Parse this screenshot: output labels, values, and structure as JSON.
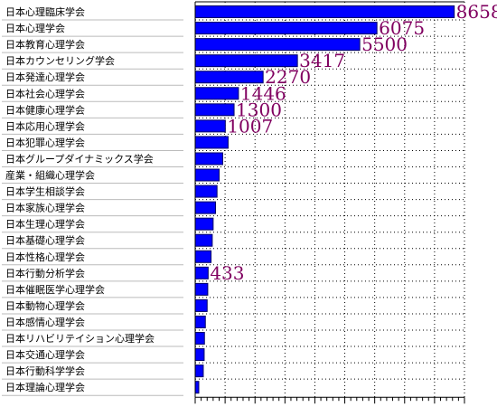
{
  "chart_data": {
    "type": "bar",
    "orientation": "horizontal",
    "title": "",
    "xlabel": "",
    "ylabel": "",
    "xlim": [
      0,
      9000
    ],
    "grid": true,
    "legend": "none",
    "categories": [
      "日本心理臨床学会",
      "日本心理学会",
      "日本教育心理学会",
      "日本カウンセリング学会",
      "日本発達心理学会",
      "日本社会心理学会",
      "日本健康心理学会",
      "日本応用心理学会",
      "日本犯罪心理学会",
      "日本グループダイナミックス学会",
      "産業・組織心理学会",
      "日本学生相談学会",
      "日本家族心理学会",
      "日本生理心理学会",
      "日本基礎心理学会",
      "日本性格心理学会",
      "日本行動分析学会",
      "日本催眠医学心理学会",
      "日本動物心理学会",
      "日本感情心理学会",
      "日本リハビリテイション心理学会",
      "日本交通心理学会",
      "日本行動科学学会",
      "日本理論心理学会"
    ],
    "values": [
      8658,
      6075,
      5500,
      3417,
      2270,
      1446,
      1300,
      1007,
      1100,
      920,
      800,
      730,
      680,
      600,
      570,
      530,
      433,
      420,
      400,
      340,
      310,
      300,
      270,
      120
    ],
    "data_labels": [
      {
        "index": 0,
        "text": "8658"
      },
      {
        "index": 1,
        "text": "6075"
      },
      {
        "index": 2,
        "text": "5500"
      },
      {
        "index": 3,
        "text": "3417"
      },
      {
        "index": 4,
        "text": "2270"
      },
      {
        "index": 5,
        "text": "1446"
      },
      {
        "index": 6,
        "text": "1300"
      },
      {
        "index": 7,
        "text": "1007"
      },
      {
        "index": 16,
        "text": "433"
      }
    ],
    "colors": {
      "bar_fill": "#0000ff",
      "bar_stroke": "#000066",
      "data_label": "#800060",
      "grid": "#000000",
      "label_divider": "#bbbbbb"
    }
  }
}
